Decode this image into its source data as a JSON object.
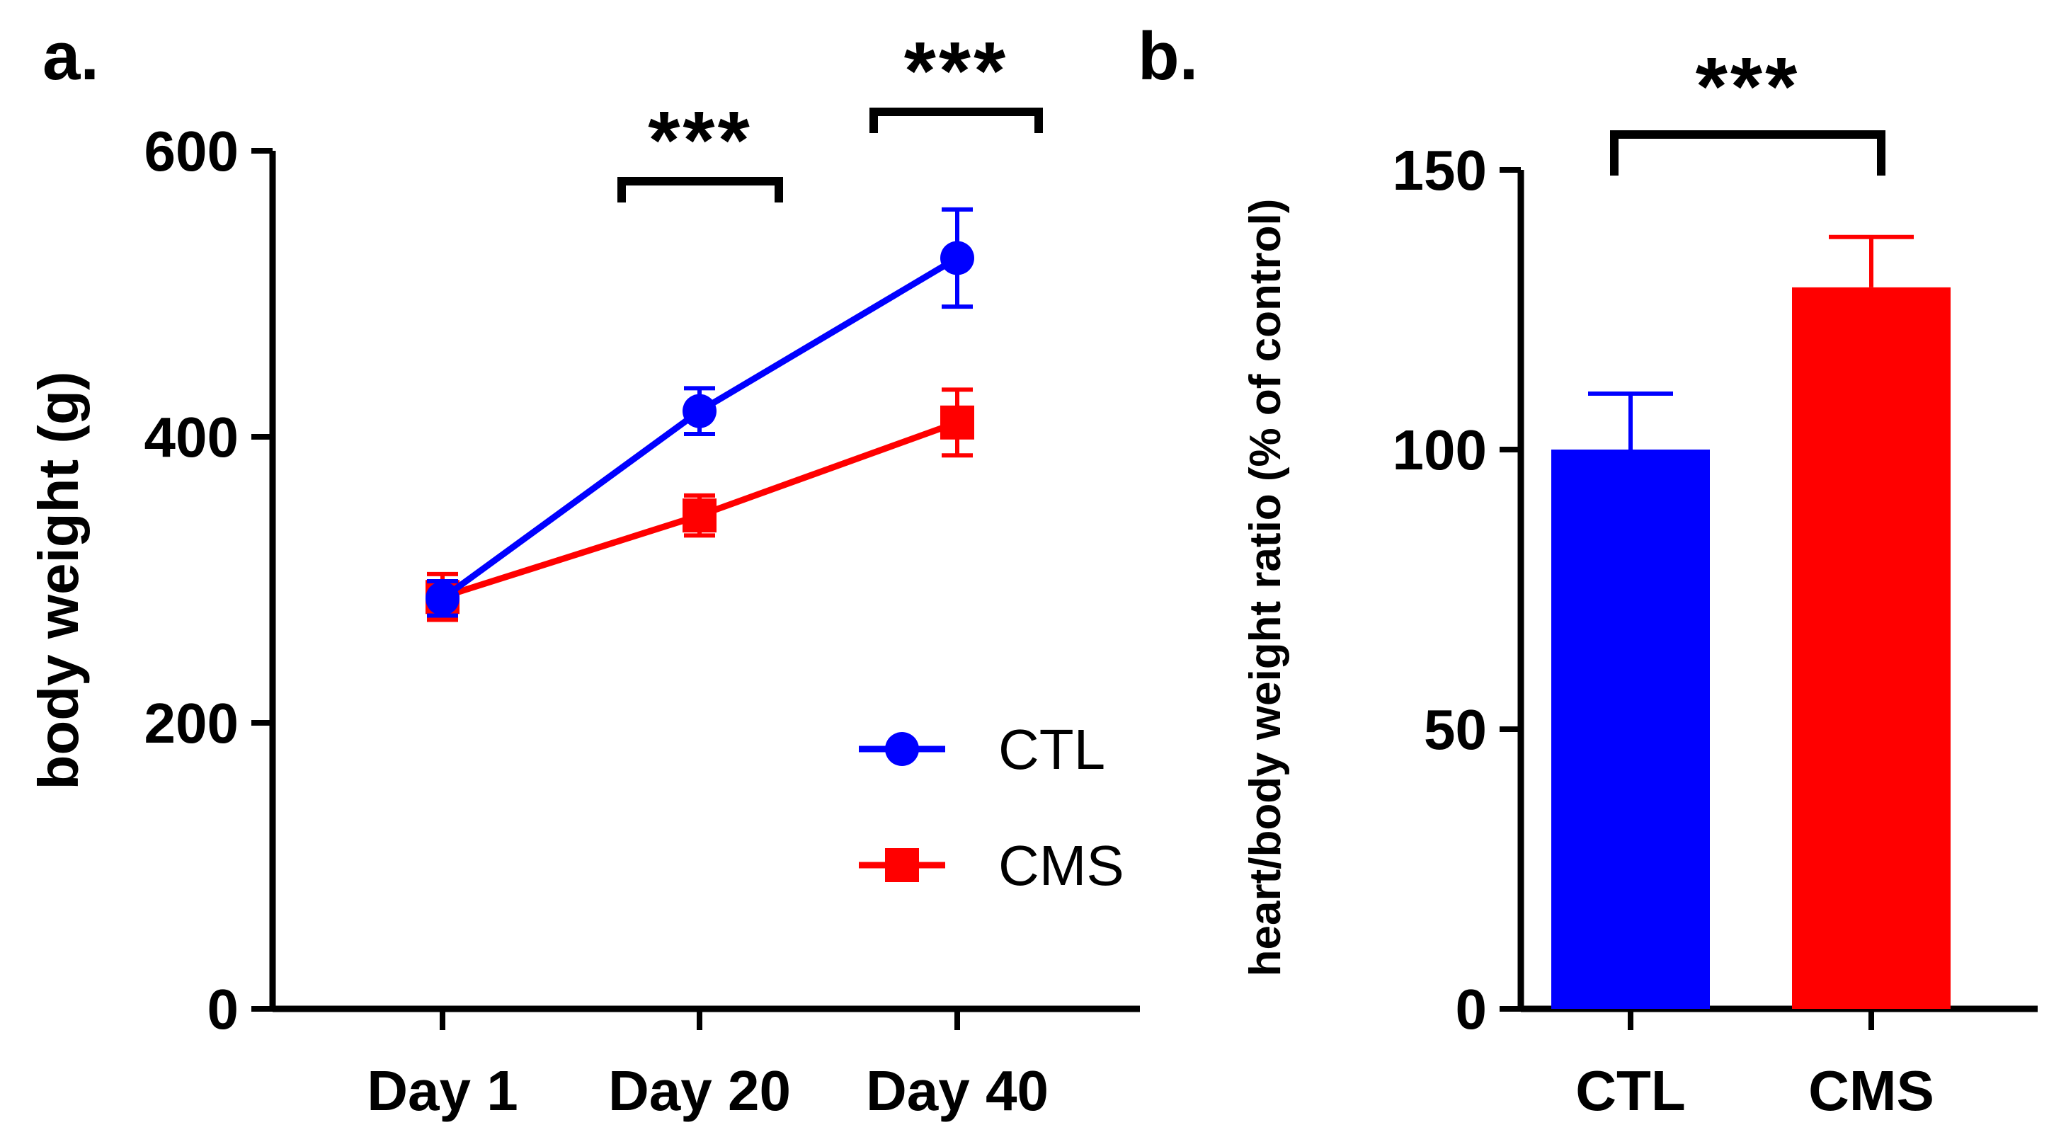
{
  "colors": {
    "ctl": "#0000ff",
    "cms": "#ff0000",
    "axis": "#000000"
  },
  "chart_data": [
    {
      "panel": "a.",
      "type": "line",
      "title": "",
      "xlabel": "",
      "ylabel": "body weight (g)",
      "categories": [
        "Day 1",
        "Day 20",
        "Day 40"
      ],
      "ylim": [
        0,
        600
      ],
      "yticks": [
        "0",
        "200",
        "400",
        "600"
      ],
      "series": [
        {
          "name": "CTL",
          "marker": "circle",
          "color": "#0000ff",
          "values": [
            287,
            418,
            525
          ],
          "errors": [
            12,
            16,
            34
          ]
        },
        {
          "name": "CMS",
          "marker": "square",
          "color": "#ff0000",
          "values": [
            288,
            345,
            410
          ],
          "errors": [
            16,
            14,
            23
          ]
        }
      ],
      "significance": [
        {
          "label": "***",
          "category": "Day 20"
        },
        {
          "label": "***",
          "category": "Day 40"
        }
      ],
      "legend_position": "bottom-right",
      "grid": false
    },
    {
      "panel": "b.",
      "type": "bar",
      "title": "",
      "xlabel": "",
      "ylabel": "heart/body weight ratio (% of control)",
      "categories": [
        "CTL",
        "CMS"
      ],
      "colors": [
        "#0000ff",
        "#ff0000"
      ],
      "values": [
        100,
        129
      ],
      "errors": [
        10,
        9
      ],
      "ylim": [
        0,
        150
      ],
      "yticks": [
        "0",
        "50",
        "100",
        "150"
      ],
      "significance": [
        {
          "label": "***",
          "between": [
            "CTL",
            "CMS"
          ]
        }
      ],
      "grid": false
    }
  ]
}
